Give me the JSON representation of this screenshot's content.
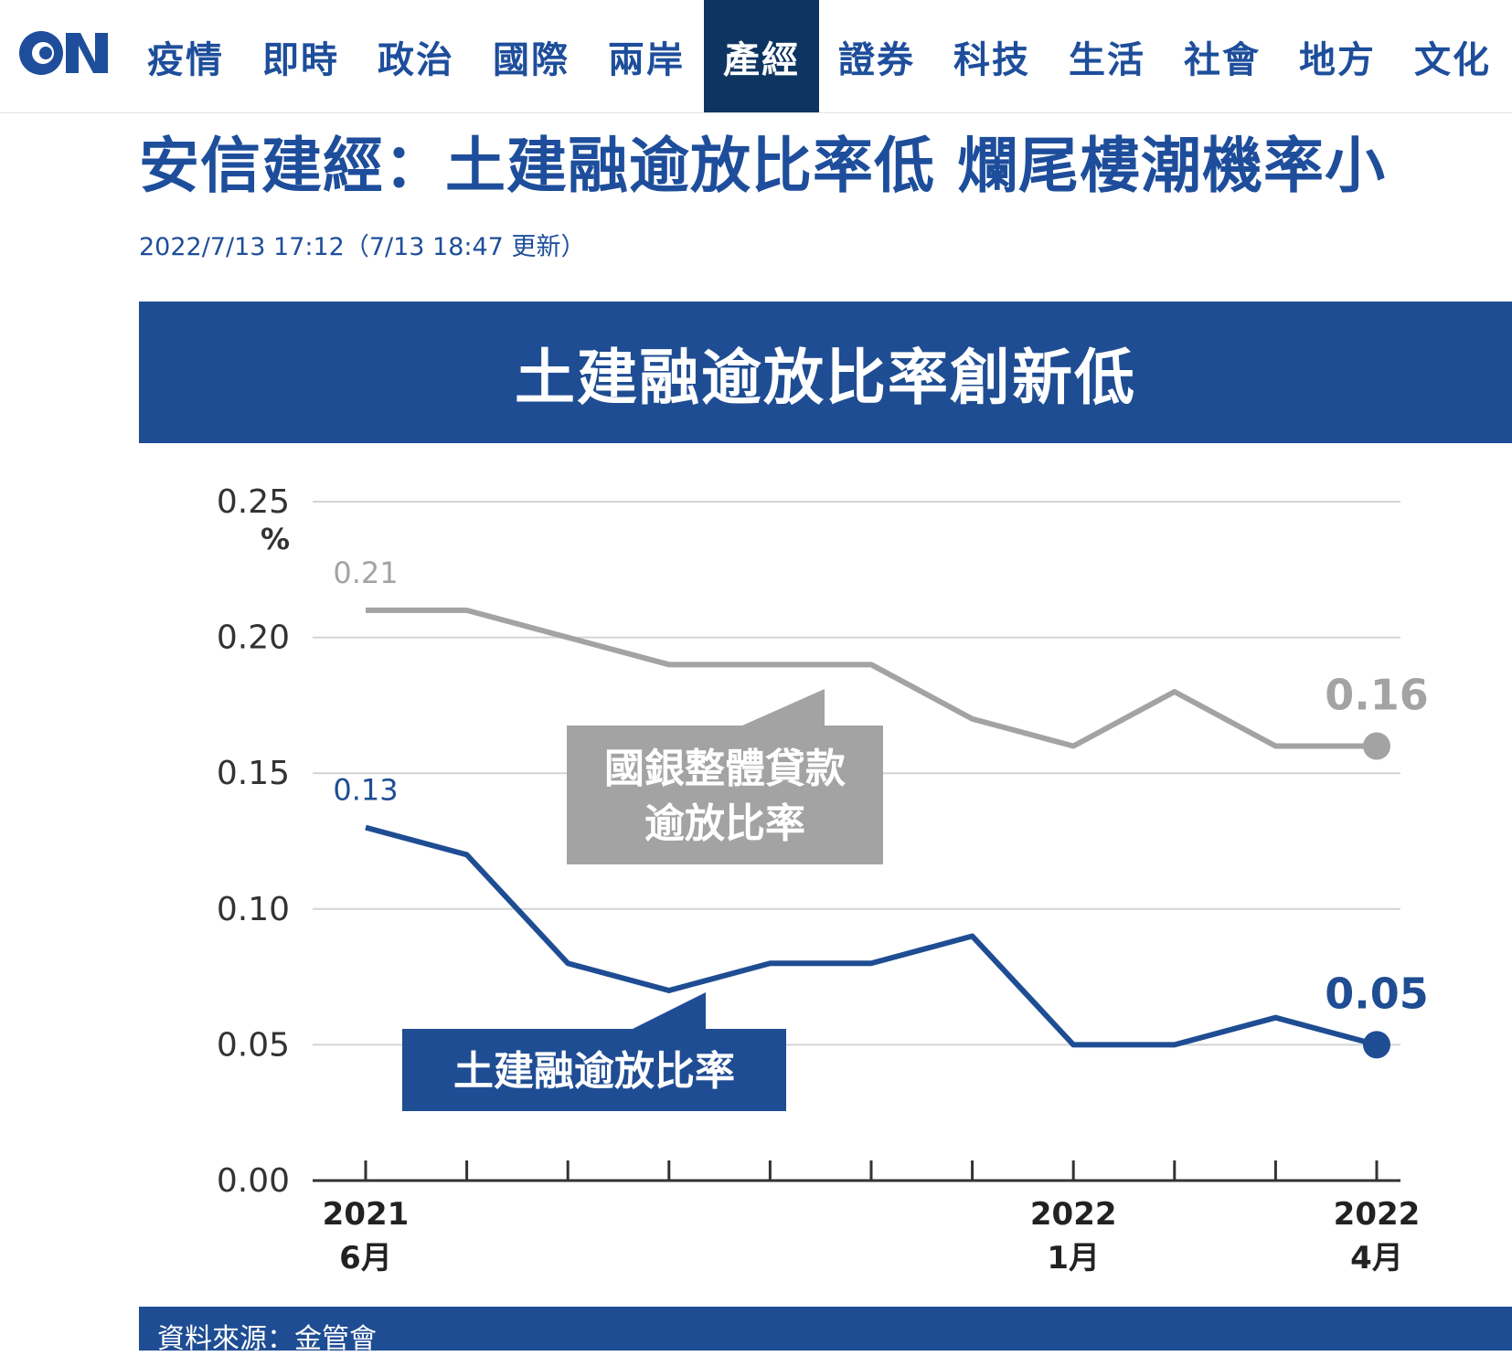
{
  "nav": {
    "items": [
      "疫情",
      "即時",
      "政治",
      "國際",
      "兩岸",
      "產經",
      "證券",
      "科技",
      "生活",
      "社會",
      "地方",
      "文化"
    ],
    "active": "產經"
  },
  "article": {
    "headline": "安信建經：土建融逾放比率低 爛尾樓潮機率小",
    "timestamp": "2022/7/13 17:12（7/13 18:47 更新）"
  },
  "colors": {
    "brand": "#1e4e9b",
    "banner": "#1f4d93",
    "nav_active": "#0e3562",
    "gray_series": "#a3a3a3"
  },
  "chart_data": {
    "type": "line",
    "title": "土建融逾放比率創新低",
    "unit_label": "%",
    "ylim": [
      0,
      0.25
    ],
    "yticks": [
      "0.25",
      "0.20",
      "0.15",
      "0.10",
      "0.05",
      "0.00"
    ],
    "x_count": 11,
    "x_tick_labels": [
      {
        "index": 0,
        "year": "2021",
        "month": "6月"
      },
      {
        "index": 7,
        "year": "2022",
        "month": "1月"
      },
      {
        "index": 10,
        "year": "2022",
        "month": "4月"
      }
    ],
    "grid": true,
    "series": [
      {
        "name_lines": [
          "國銀整體貸款",
          "逾放比率"
        ],
        "color": "#a3a3a3",
        "values": [
          0.21,
          0.21,
          0.2,
          0.19,
          0.19,
          0.19,
          0.17,
          0.16,
          0.18,
          0.16,
          0.16
        ],
        "start_label": "0.21",
        "end_label": "0.16"
      },
      {
        "name_lines": [
          "土建融逾放比率"
        ],
        "color": "#1f4d93",
        "values": [
          0.13,
          0.12,
          0.08,
          0.07,
          0.08,
          0.08,
          0.09,
          0.05,
          0.05,
          0.06,
          0.05
        ],
        "start_label": "0.13",
        "end_label": "0.05"
      }
    ],
    "source": "資料來源：金管會"
  }
}
